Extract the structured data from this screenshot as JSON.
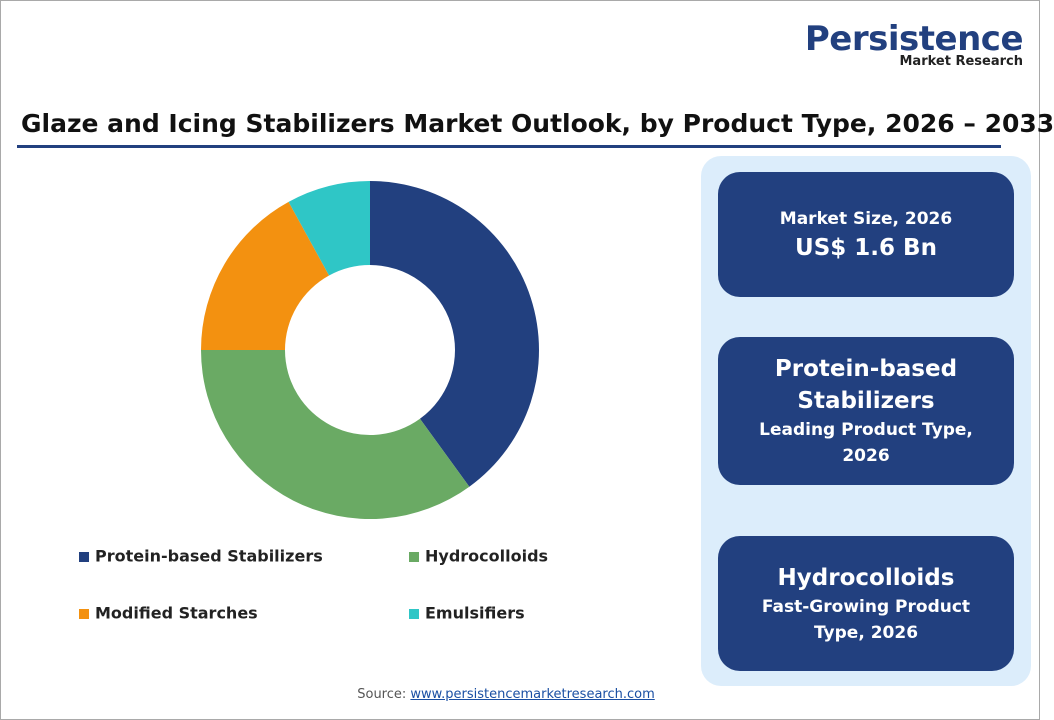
{
  "logo": {
    "name": "Persistence",
    "tagline": "Market Research"
  },
  "chart_data": {
    "type": "donut",
    "title": "Glaze and Icing Stabilizers Market Outlook, by Product Type, 2026 – 2033",
    "categories": [
      "Protein-based Stabilizers",
      "Hydrocolloids",
      "Modified Starches",
      "Emulsifiers"
    ],
    "values": [
      40,
      35,
      17,
      8
    ],
    "colors": [
      "#22407f",
      "#6aaa64",
      "#f39110",
      "#2fc6c6"
    ]
  },
  "cards": [
    {
      "heading": "Market Size, 2026",
      "value": "US$ 1.6 Bn"
    },
    {
      "heading": "Protein-based Stabilizers",
      "value": "Leading Product Type, 2026"
    },
    {
      "heading": "Hydrocolloids",
      "value": "Fast-Growing Product Type, 2026"
    }
  ],
  "source": {
    "label": "Source:",
    "url": "www.persistencemarketresearch.com"
  }
}
